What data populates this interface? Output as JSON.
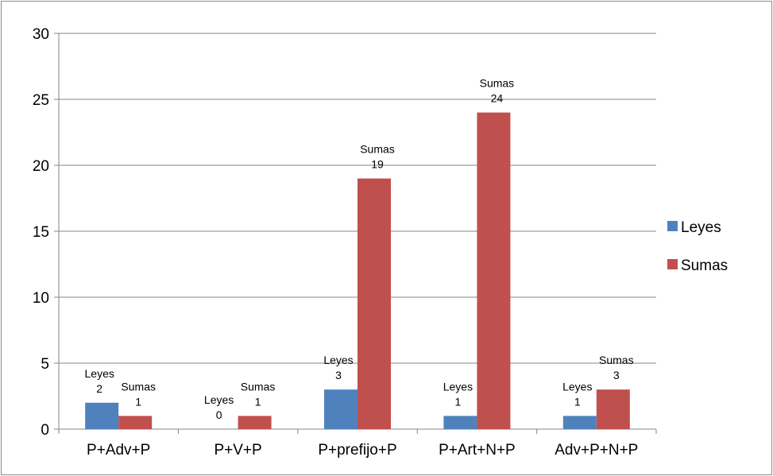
{
  "chart_data": {
    "type": "bar",
    "categories": [
      "P+Adv+P",
      "P+V+P",
      "P+prefijo+P",
      "P+Art+N+P",
      "Adv+P+N+P"
    ],
    "series": [
      {
        "name": "Leyes",
        "values": [
          2,
          0,
          3,
          1,
          1
        ],
        "color": "#4f81bd"
      },
      {
        "name": "Sumas",
        "values": [
          1,
          1,
          19,
          24,
          3
        ],
        "color": "#c0504d"
      }
    ],
    "ylim": [
      0,
      30
    ],
    "yticks": [
      0,
      5,
      10,
      15,
      20,
      25,
      30
    ],
    "grid": true,
    "legend_position": "right"
  }
}
